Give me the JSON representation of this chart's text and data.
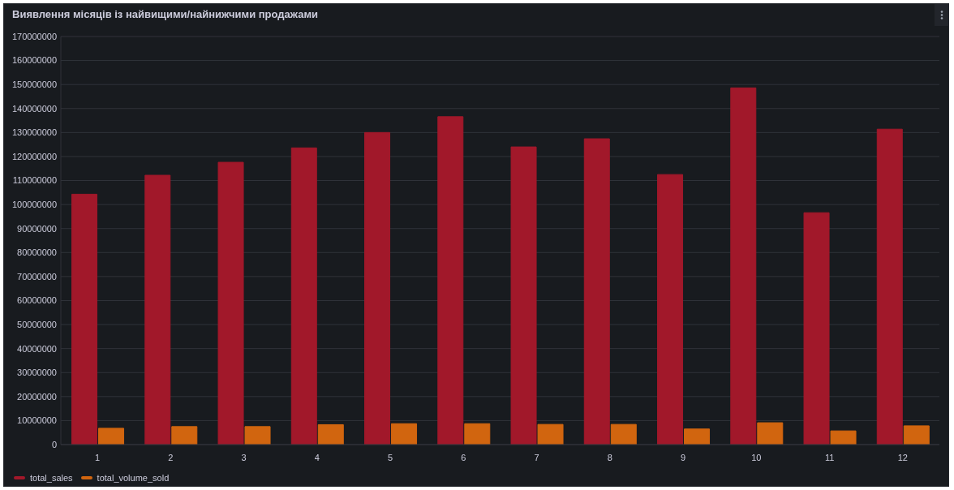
{
  "chart_data": {
    "type": "bar",
    "title": "Виявлення місяців із найвищими/найнижчими продажами",
    "categories": [
      "1",
      "2",
      "3",
      "4",
      "5",
      "6",
      "7",
      "8",
      "9",
      "10",
      "11",
      "12"
    ],
    "series": [
      {
        "name": "total_sales",
        "color": "#a1182a",
        "values": [
          104300000,
          112200000,
          117600000,
          123600000,
          130000000,
          136600000,
          124000000,
          127400000,
          112500000,
          148600000,
          96600000,
          131400000
        ]
      },
      {
        "name": "total_volume_sold",
        "color": "#d1650f",
        "values": [
          6800000,
          7500000,
          7500000,
          8300000,
          8700000,
          8700000,
          8400000,
          8400000,
          6500000,
          9100000,
          5700000,
          7800000
        ]
      }
    ],
    "ylim": [
      0,
      170000000
    ],
    "yticks": [
      0,
      10000000,
      20000000,
      30000000,
      40000000,
      50000000,
      60000000,
      70000000,
      80000000,
      90000000,
      100000000,
      110000000,
      120000000,
      130000000,
      140000000,
      150000000,
      160000000,
      170000000
    ],
    "grid": "y",
    "legend": "bottom left"
  }
}
